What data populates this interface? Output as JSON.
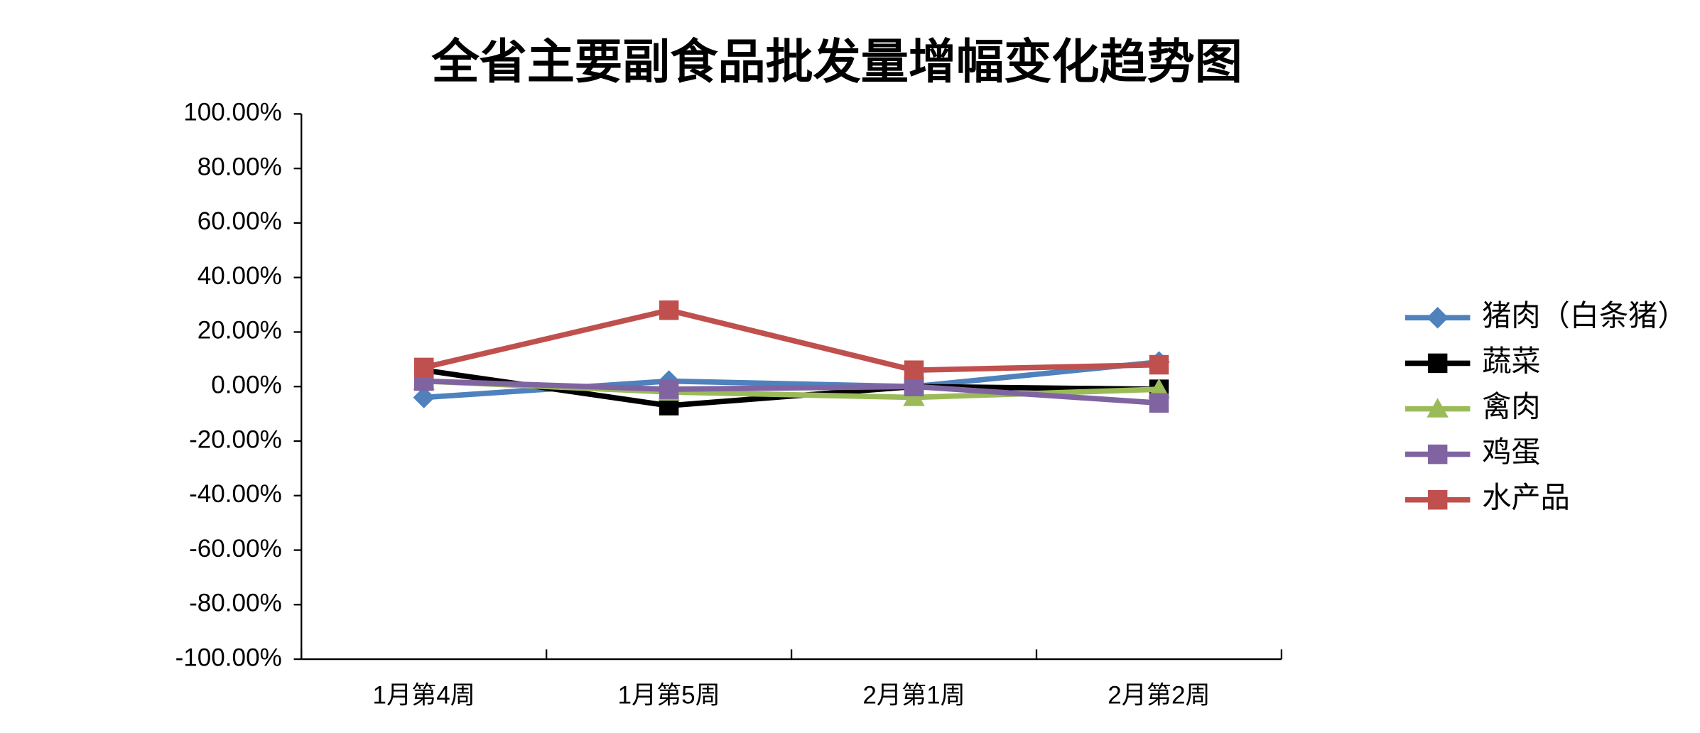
{
  "chart_data": {
    "type": "line",
    "title": "全省主要副食品批发量增幅变化趋势图",
    "categories": [
      "1月第4周",
      "1月第5周",
      "2月第1周",
      "2月第2周"
    ],
    "series": [
      {
        "name": "猪肉（白条猪）",
        "color": "#4f81bd",
        "marker": "diamond",
        "values": [
          -4,
          2,
          0,
          9
        ]
      },
      {
        "name": "蔬菜",
        "color": "#000000",
        "marker": "square",
        "values": [
          6,
          -7,
          0,
          -1
        ]
      },
      {
        "name": "禽肉",
        "color": "#9bbb59",
        "marker": "triangle",
        "values": [
          2,
          -2,
          -4,
          -1
        ]
      },
      {
        "name": "鸡蛋",
        "color": "#8064a2",
        "marker": "square",
        "values": [
          2,
          -1,
          0,
          -6
        ]
      },
      {
        "name": "水产品",
        "color": "#c0504d",
        "marker": "square",
        "values": [
          7,
          28,
          6,
          8
        ]
      }
    ],
    "ylim": [
      -100,
      100
    ],
    "yticks": [
      {
        "value": 100,
        "label": "100.00%"
      },
      {
        "value": 80,
        "label": "80.00%"
      },
      {
        "value": 60,
        "label": "60.00%"
      },
      {
        "value": 40,
        "label": "40.00%"
      },
      {
        "value": 20,
        "label": "20.00%"
      },
      {
        "value": 0,
        "label": "0.00%"
      },
      {
        "value": -20,
        "label": "-20.00%"
      },
      {
        "value": -40,
        "label": "-40.00%"
      },
      {
        "value": -60,
        "label": "-60.00%"
      },
      {
        "value": -80,
        "label": "-80.00%"
      },
      {
        "value": -100,
        "label": "-100.00%"
      }
    ],
    "grid": false,
    "legend": "right"
  }
}
